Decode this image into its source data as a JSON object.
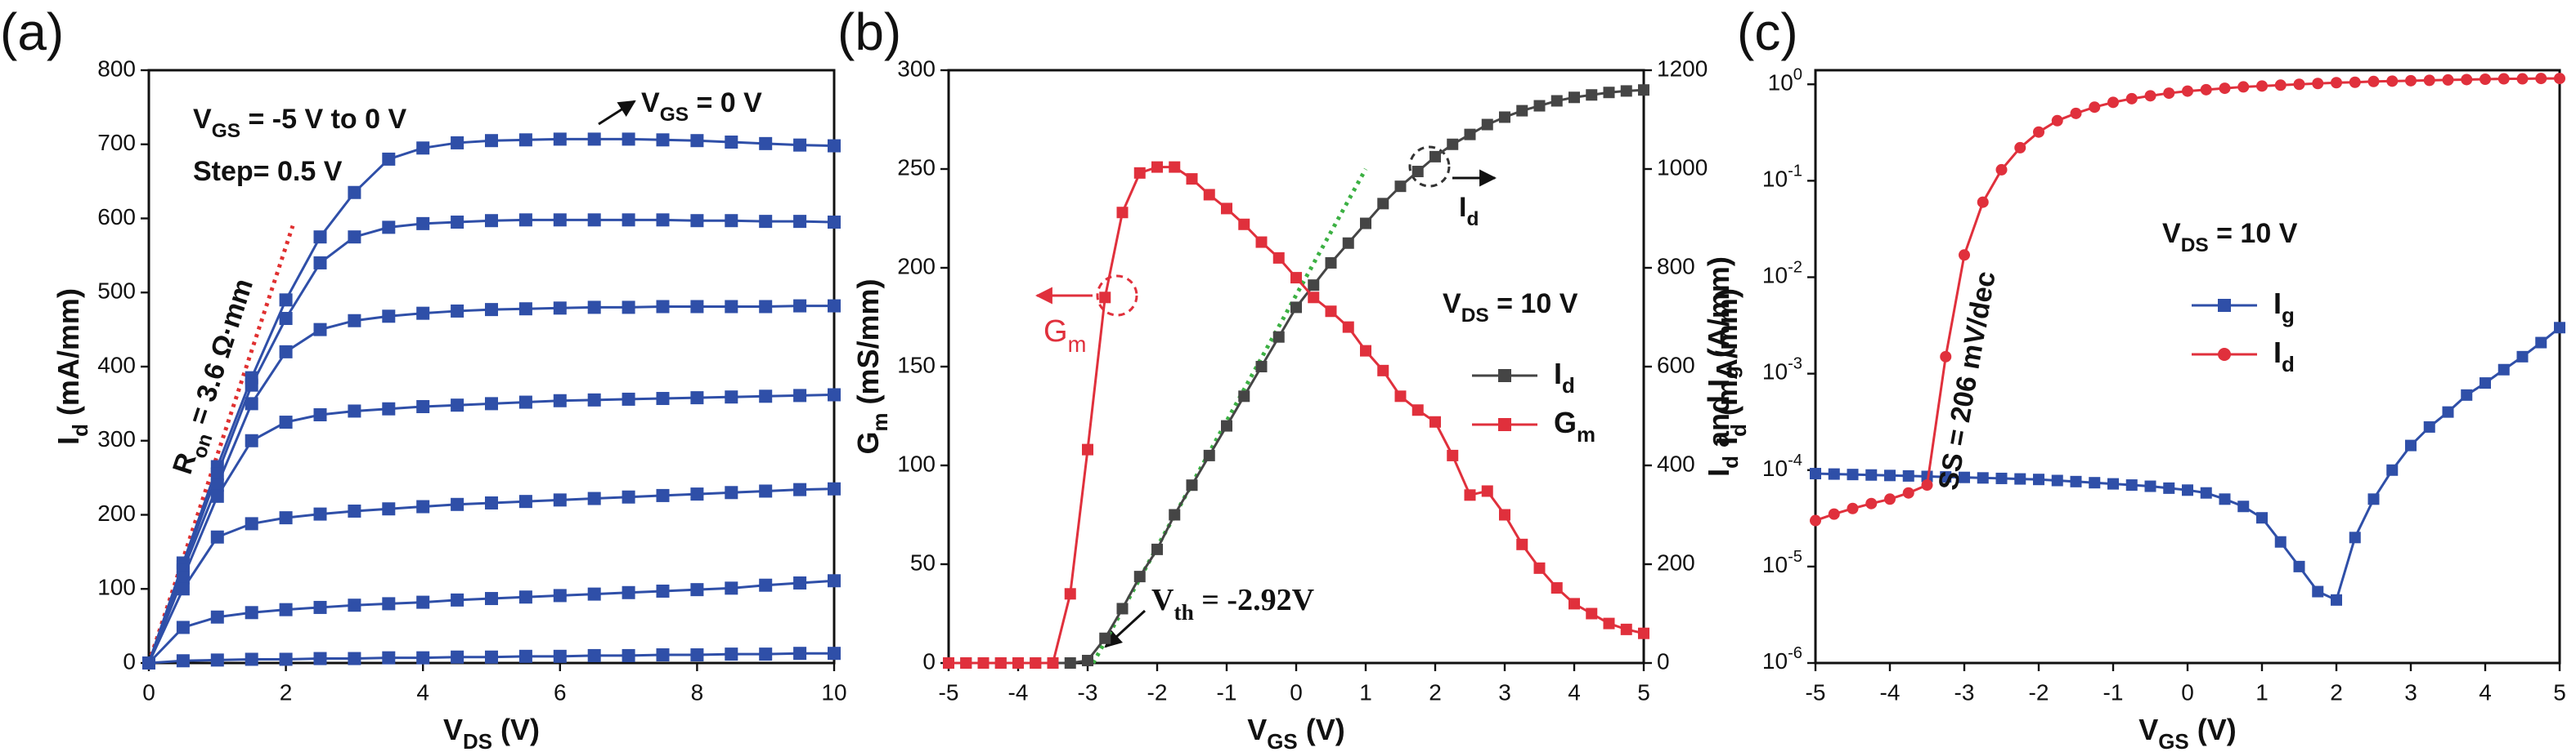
{
  "chart_data": [
    {
      "type": "line",
      "panel_label": "(a)",
      "x_label": [
        "V",
        {
          "sub": "DS"
        },
        " (V)"
      ],
      "y_label": [
        "I",
        {
          "sub": "d"
        },
        " (mA/mm)"
      ],
      "xlim": [
        0,
        10
      ],
      "ylim": [
        0,
        800
      ],
      "xticks": [
        0,
        2,
        4,
        6,
        8,
        10
      ],
      "yticks": [
        0,
        100,
        200,
        300,
        400,
        500,
        600,
        700,
        800
      ],
      "marker": "square",
      "x": [
        0,
        0.5,
        1,
        1.5,
        2,
        2.5,
        3,
        3.5,
        4,
        4.5,
        5,
        5.5,
        6,
        6.5,
        7,
        7.5,
        8,
        8.5,
        9,
        9.5,
        10
      ],
      "series": [
        {
          "color": "#2f4fa8",
          "values": [
            0,
            135,
            265,
            385,
            490,
            575,
            635,
            680,
            695,
            702,
            705,
            706,
            707,
            707,
            707,
            706,
            705,
            703,
            701,
            699,
            698
          ]
        },
        {
          "color": "#2f4fa8",
          "values": [
            0,
            130,
            255,
            375,
            465,
            540,
            575,
            588,
            593,
            595,
            597,
            598,
            598,
            598,
            598,
            598,
            597,
            597,
            596,
            596,
            595
          ]
        },
        {
          "color": "#2f4fa8",
          "values": [
            0,
            125,
            240,
            350,
            420,
            450,
            462,
            468,
            472,
            475,
            477,
            478,
            479,
            480,
            480,
            481,
            481,
            481,
            481,
            482,
            482
          ]
        },
        {
          "color": "#2f4fa8",
          "values": [
            0,
            115,
            225,
            300,
            325,
            335,
            340,
            343,
            346,
            348,
            350,
            352,
            354,
            355,
            356,
            357,
            358,
            359,
            360,
            361,
            362
          ]
        },
        {
          "color": "#2f4fa8",
          "values": [
            0,
            100,
            170,
            188,
            196,
            201,
            205,
            208,
            211,
            214,
            216,
            218,
            220,
            222,
            224,
            226,
            228,
            230,
            232,
            234,
            235
          ]
        },
        {
          "color": "#2f4fa8",
          "values": [
            0,
            48,
            62,
            68,
            72,
            75,
            78,
            80,
            82,
            85,
            87,
            89,
            91,
            93,
            95,
            97,
            99,
            101,
            105,
            108,
            111
          ]
        },
        {
          "color": "#2f4fa8",
          "values": [
            0,
            3,
            4,
            5,
            5,
            6,
            6,
            7,
            7,
            8,
            8,
            9,
            9,
            10,
            10,
            11,
            11,
            12,
            12,
            13,
            13
          ]
        }
      ],
      "fit_line": {
        "x": [
          0,
          2.1
        ],
        "values": [
          0,
          590
        ],
        "color": "#e03030"
      },
      "annotations": [
        [
          "V",
          {
            "sub": "GS"
          },
          " = -5 V to 0 V"
        ],
        [
          "Step= 0.5 V"
        ],
        [
          "V",
          {
            "sub": "GS"
          },
          " = 0 V"
        ],
        [
          "R",
          {
            "sub": "on"
          },
          " = 3.6 Ω·mm"
        ]
      ]
    },
    {
      "type": "line",
      "panel_label": "(b)",
      "x_label": [
        "V",
        {
          "sub": "GS"
        },
        " (V)"
      ],
      "y_label": [
        "G",
        {
          "sub": "m"
        },
        " (mS/mm)"
      ],
      "y2_label": [
        "I",
        {
          "sub": "d"
        },
        " (mA/mm)"
      ],
      "xlim": [
        -5,
        5
      ],
      "ylim": [
        0,
        300
      ],
      "y2lim": [
        0,
        1200
      ],
      "xticks": [
        -5,
        -4,
        -3,
        -2,
        -1,
        0,
        1,
        2,
        3,
        4,
        5
      ],
      "yticks": [
        0,
        50,
        100,
        150,
        200,
        250,
        300
      ],
      "y2ticks": [
        0,
        200,
        400,
        600,
        800,
        1000,
        1200
      ],
      "marker": "square",
      "legend": "right",
      "x": [
        -5,
        -4.75,
        -4.5,
        -4.25,
        -4,
        -3.75,
        -3.5,
        -3.25,
        -3,
        -2.75,
        -2.5,
        -2.25,
        -2,
        -1.75,
        -1.5,
        -1.25,
        -1,
        -0.75,
        -0.5,
        -0.25,
        0,
        0.25,
        0.5,
        0.75,
        1,
        1.25,
        1.5,
        1.75,
        2,
        2.25,
        2.5,
        2.75,
        3,
        3.25,
        3.5,
        3.75,
        4,
        4.25,
        4.5,
        4.75,
        5
      ],
      "series": [
        {
          "name": [
            "I",
            {
              "sub": "d"
            }
          ],
          "color": "#454545",
          "axis": "y2",
          "values": [
            0,
            0,
            0,
            0,
            0,
            0,
            0,
            0,
            5,
            50,
            110,
            175,
            230,
            300,
            360,
            420,
            480,
            540,
            600,
            660,
            720,
            765,
            810,
            850,
            890,
            930,
            965,
            995,
            1025,
            1050,
            1070,
            1090,
            1105,
            1118,
            1128,
            1138,
            1145,
            1150,
            1155,
            1158,
            1160
          ]
        },
        {
          "name": [
            "G",
            {
              "sub": "m"
            }
          ],
          "color": "#e0303c",
          "values": [
            0,
            0,
            0,
            0,
            0,
            0,
            0,
            35,
            108,
            185,
            228,
            248,
            251,
            251,
            245,
            237,
            230,
            222,
            213,
            205,
            195,
            185,
            178,
            170,
            158,
            148,
            135,
            128,
            122,
            105,
            85,
            87,
            75,
            60,
            48,
            38,
            30,
            25,
            20,
            17,
            15
          ]
        }
      ],
      "fit_line": {
        "x": [
          -2.92,
          1
        ],
        "values": [
          0,
          1000
        ],
        "color": "#3cb043",
        "axis": "y2"
      },
      "annotations": [
        [
          "V",
          {
            "sub": "DS"
          },
          " = 10 V"
        ],
        [
          "V",
          {
            "sub": "th"
          },
          " = -2.92V"
        ],
        [
          "G",
          {
            "sub": "m"
          }
        ],
        [
          "I",
          {
            "sub": "d"
          }
        ]
      ]
    },
    {
      "type": "line",
      "panel_label": "(c)",
      "x_label": [
        "V",
        {
          "sub": "GS"
        },
        " (V)"
      ],
      "y_label": [
        "I",
        {
          "sub": "d"
        },
        " and I",
        {
          "sub": "g"
        },
        " (A/mm)"
      ],
      "xlim": [
        -5,
        5
      ],
      "ylim": [
        1e-06,
        1.4
      ],
      "log_y": true,
      "xticks": [
        -5,
        -4,
        -3,
        -2,
        -1,
        0,
        1,
        2,
        3,
        4,
        5
      ],
      "yticks": [
        {
          "value": 1e-06,
          "label": [
            "10",
            {
              "sup": "-6"
            }
          ]
        },
        {
          "value": 1e-05,
          "label": [
            "10",
            {
              "sup": "-5"
            }
          ]
        },
        {
          "value": 0.0001,
          "label": [
            "10",
            {
              "sup": "-4"
            }
          ]
        },
        {
          "value": 0.001,
          "label": [
            "10",
            {
              "sup": "-3"
            }
          ]
        },
        {
          "value": 0.01,
          "label": [
            "10",
            {
              "sup": "-2"
            }
          ]
        },
        {
          "value": 0.1,
          "label": [
            "10",
            {
              "sup": "-1"
            }
          ]
        },
        {
          "value": 1,
          "label": [
            "10",
            {
              "sup": "0"
            }
          ]
        }
      ],
      "legend": "center",
      "x": [
        -5,
        -4.75,
        -4.5,
        -4.25,
        -4,
        -3.75,
        -3.5,
        -3.25,
        -3,
        -2.75,
        -2.5,
        -2.25,
        -2,
        -1.75,
        -1.5,
        -1.25,
        -1,
        -0.75,
        -0.5,
        -0.25,
        0,
        0.25,
        0.5,
        0.75,
        1,
        1.25,
        1.5,
        1.75,
        2,
        2.25,
        2.5,
        2.75,
        3,
        3.25,
        3.5,
        3.75,
        4,
        4.25,
        4.5,
        4.75,
        5
      ],
      "series": [
        {
          "name": [
            "I",
            {
              "sub": "g"
            }
          ],
          "color": "#2f4fa8",
          "marker": "square",
          "values": [
            9.2e-05,
            9.1e-05,
            9e-05,
            8.9e-05,
            8.8e-05,
            8.7e-05,
            8.6e-05,
            8.5e-05,
            8.4e-05,
            8.3e-05,
            8.2e-05,
            8.1e-05,
            8e-05,
            7.8e-05,
            7.6e-05,
            7.4e-05,
            7.2e-05,
            7e-05,
            6.8e-05,
            6.5e-05,
            6.2e-05,
            5.8e-05,
            5e-05,
            4.2e-05,
            3.2e-05,
            1.8e-05,
            1e-05,
            5.5e-06,
            4.5e-06,
            2e-05,
            5e-05,
            0.0001,
            0.00018,
            0.00028,
            0.0004,
            0.0006,
            0.0008,
            0.0011,
            0.0015,
            0.0021,
            0.003
          ]
        },
        {
          "name": [
            "I",
            {
              "sub": "d"
            }
          ],
          "color": "#e0303c",
          "marker": "circle",
          "values": [
            3e-05,
            3.5e-05,
            4e-05,
            4.5e-05,
            5e-05,
            5.8e-05,
            7e-05,
            0.0015,
            0.017,
            0.06,
            0.13,
            0.22,
            0.32,
            0.42,
            0.5,
            0.58,
            0.65,
            0.71,
            0.76,
            0.81,
            0.85,
            0.88,
            0.91,
            0.94,
            0.96,
            0.98,
            1.0,
            1.02,
            1.04,
            1.05,
            1.07,
            1.08,
            1.09,
            1.1,
            1.11,
            1.12,
            1.13,
            1.14,
            1.14,
            1.15,
            1.15
          ]
        }
      ],
      "annotations": [
        [
          "V",
          {
            "sub": "DS"
          },
          " = 10 V"
        ],
        [
          "SS = 206 mV/dec"
        ]
      ]
    }
  ]
}
